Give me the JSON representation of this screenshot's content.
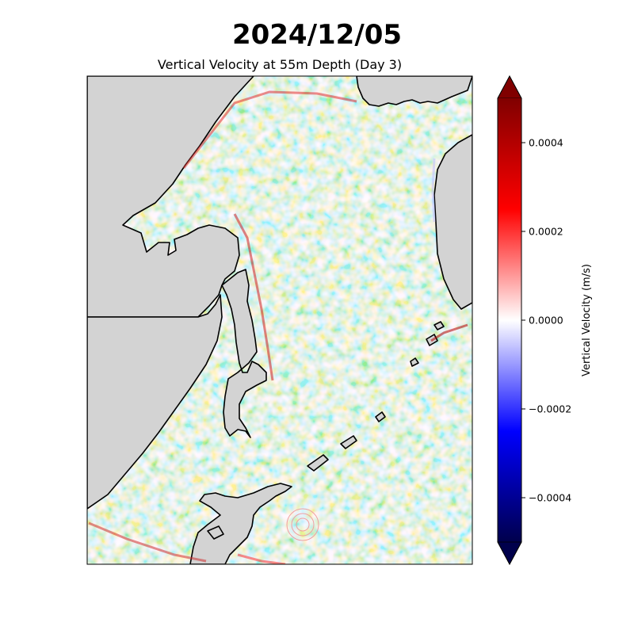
{
  "suptitle": "2024/12/05",
  "title": "Vertical Velocity at 55m Depth (Day 3)",
  "colorbar": {
    "label": "Vertical Velocity (m/s)",
    "min": -0.0005,
    "max": 0.0005,
    "extend": "both",
    "ticks": [
      {
        "value": 0.0004,
        "label": "0.0004"
      },
      {
        "value": 0.0002,
        "label": "0.0002"
      },
      {
        "value": 0.0,
        "label": "0.0000"
      },
      {
        "value": -0.0002,
        "label": "−0.0002"
      },
      {
        "value": -0.0004,
        "label": "−0.0004"
      }
    ],
    "colormap": "seismic"
  },
  "map": {
    "land_color": "#d3d3d3",
    "coastline_color": "#000000"
  }
}
